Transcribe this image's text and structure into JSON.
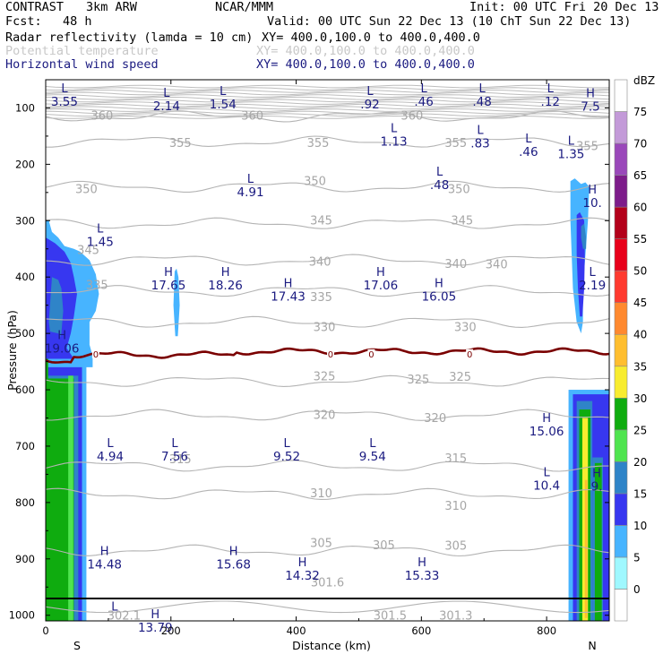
{
  "header": {
    "model": "CONTRAST",
    "config": "3km ARW",
    "org": "NCAR/MMM",
    "init": "Init: 00 UTC Fri 20 Dec 13",
    "fcst_label": "Fcst:",
    "fcst_value": "48 h",
    "valid": "Valid: 00 UTC Sun 22 Dec 13 (10 ChT Sun 22 Dec 13)",
    "fields": [
      {
        "name": "Radar reflectivity (lamda = 10 cm)",
        "xy": "XY= 400.0,100.0 to 400.0,400.0"
      },
      {
        "name": "Potential temperature",
        "xy": "XY= 400.0,100.0 to 400.0,400.0"
      },
      {
        "name": "Horizontal wind speed",
        "xy": "XY= 400.0,100.0 to 400.0,400.0"
      }
    ]
  },
  "chart_data": {
    "type": "cross-section contour",
    "xlabel": "Distance (km)",
    "ylabel": "Pressure (hPa)",
    "xlim": [
      0,
      900
    ],
    "ylim_hpa": [
      50,
      1010
    ],
    "x_ticks": [
      0,
      200,
      400,
      600,
      800
    ],
    "y_ticks": [
      100,
      200,
      300,
      400,
      500,
      600,
      700,
      800,
      900,
      1000
    ],
    "x_ends": {
      "left": "S",
      "right": "N"
    },
    "colorbar": {
      "unit": "dBZ",
      "levels": [
        0,
        5,
        10,
        15,
        20,
        25,
        30,
        35,
        40,
        45,
        50,
        55,
        60,
        65,
        70,
        75
      ],
      "colors": [
        "#ffffff",
        "#9ff8ff",
        "#47b4ff",
        "#3737f0",
        "#2f84c8",
        "#4fe44f",
        "#0fac0f",
        "#f8ec2f",
        "#ffbe2f",
        "#ff892f",
        "#ff3a2f",
        "#e8001a",
        "#b3001a",
        "#7d1c8a",
        "#9a48ba",
        "#c39ad8",
        "#ffffff"
      ]
    },
    "theta_contours": [
      {
        "value": 360,
        "p": 115
      },
      {
        "value": 355,
        "p": 160
      },
      {
        "value": 350,
        "p": 240
      },
      {
        "value": 345,
        "p": 305
      },
      {
        "value": 340,
        "p": 370
      },
      {
        "value": 335,
        "p": 425
      },
      {
        "value": 330,
        "p": 480
      },
      {
        "value": 325,
        "p": 585
      },
      {
        "value": 320,
        "p": 645
      },
      {
        "value": 315,
        "p": 735
      },
      {
        "value": 310,
        "p": 785
      },
      {
        "value": 305,
        "p": 885
      }
    ],
    "theta_labels": [
      {
        "text": "360",
        "x": 90,
        "p": 113
      },
      {
        "text": "360",
        "x": 330,
        "p": 113
      },
      {
        "text": "360",
        "x": 585,
        "p": 113
      },
      {
        "text": "355",
        "x": 215,
        "p": 161
      },
      {
        "text": "355",
        "x": 435,
        "p": 161
      },
      {
        "text": "355",
        "x": 655,
        "p": 161
      },
      {
        "text": "355",
        "x": 865,
        "p": 167
      },
      {
        "text": "350",
        "x": 65,
        "p": 243
      },
      {
        "text": "350",
        "x": 430,
        "p": 229
      },
      {
        "text": "350",
        "x": 660,
        "p": 243
      },
      {
        "text": "345",
        "x": 440,
        "p": 299
      },
      {
        "text": "345",
        "x": 665,
        "p": 299
      },
      {
        "text": "345",
        "x": 68,
        "p": 351
      },
      {
        "text": "340",
        "x": 438,
        "p": 372
      },
      {
        "text": "340",
        "x": 655,
        "p": 376
      },
      {
        "text": "340",
        "x": 720,
        "p": 377
      },
      {
        "text": "335",
        "x": 82,
        "p": 413
      },
      {
        "text": "335",
        "x": 440,
        "p": 435
      },
      {
        "text": "330",
        "x": 445,
        "p": 488
      },
      {
        "text": "330",
        "x": 670,
        "p": 488
      },
      {
        "text": "325",
        "x": 445,
        "p": 575
      },
      {
        "text": "325",
        "x": 595,
        "p": 581
      },
      {
        "text": "325",
        "x": 662,
        "p": 576
      },
      {
        "text": "320",
        "x": 445,
        "p": 644
      },
      {
        "text": "320",
        "x": 622,
        "p": 649
      },
      {
        "text": "315",
        "x": 215,
        "p": 722
      },
      {
        "text": "315",
        "x": 655,
        "p": 721
      },
      {
        "text": "310",
        "x": 440,
        "p": 783
      },
      {
        "text": "310",
        "x": 655,
        "p": 805
      },
      {
        "text": "305",
        "x": 440,
        "p": 871
      },
      {
        "text": "305",
        "x": 540,
        "p": 875
      },
      {
        "text": "305",
        "x": 655,
        "p": 876
      },
      {
        "text": "301.6",
        "x": 450,
        "p": 941
      },
      {
        "text": "302.1",
        "x": 125,
        "p": 1000
      },
      {
        "text": "301.5",
        "x": 550,
        "p": 1000
      },
      {
        "text": "301.3",
        "x": 655,
        "p": 1000
      }
    ],
    "wind_extrema": [
      {
        "type": "L",
        "value": "3.55",
        "x": 30,
        "p": 72
      },
      {
        "type": "L",
        "value": "2.14",
        "x": 193,
        "p": 80
      },
      {
        "type": "L",
        "value": "1.54",
        "x": 283,
        "p": 77
      },
      {
        "type": "L",
        "value": ".92",
        "x": 518,
        "p": 77
      },
      {
        "type": "L",
        "value": ".46",
        "x": 604,
        "p": 72
      },
      {
        "type": "L",
        "value": ".48",
        "x": 697,
        "p": 72
      },
      {
        "type": "L",
        "value": ".12",
        "x": 806,
        "p": 72
      },
      {
        "type": "H",
        "value": "7.5",
        "x": 870,
        "p": 81
      },
      {
        "type": "L",
        "value": "1.13",
        "x": 556,
        "p": 143
      },
      {
        "type": "L",
        "value": ".83",
        "x": 694,
        "p": 146
      },
      {
        "type": "L",
        "value": ".46",
        "x": 771,
        "p": 161
      },
      {
        "type": "L",
        "value": "1.35",
        "x": 839,
        "p": 165
      },
      {
        "type": "L",
        "value": ".48",
        "x": 629,
        "p": 220
      },
      {
        "type": "L",
        "value": "4.91",
        "x": 327,
        "p": 233
      },
      {
        "type": "H",
        "value": "10.",
        "x": 873,
        "p": 252
      },
      {
        "type": "L",
        "value": "1.45",
        "x": 87,
        "p": 321
      },
      {
        "type": "H",
        "value": "17.65",
        "x": 196,
        "p": 398
      },
      {
        "type": "H",
        "value": "18.26",
        "x": 287,
        "p": 398
      },
      {
        "type": "H",
        "value": "17.43",
        "x": 387,
        "p": 418
      },
      {
        "type": "H",
        "value": "17.06",
        "x": 535,
        "p": 398
      },
      {
        "type": "H",
        "value": "16.05",
        "x": 628,
        "p": 418
      },
      {
        "type": "L",
        "value": "2.19",
        "x": 873,
        "p": 398
      },
      {
        "type": "H",
        "value": "19.06",
        "x": 26,
        "p": 510
      },
      {
        "type": "H",
        "value": "15.06",
        "x": 800,
        "p": 657
      },
      {
        "type": "L",
        "value": "4.94",
        "x": 103,
        "p": 702
      },
      {
        "type": "L",
        "value": "7.56",
        "x": 206,
        "p": 702
      },
      {
        "type": "L",
        "value": "9.52",
        "x": 385,
        "p": 702
      },
      {
        "type": "L",
        "value": "9.54",
        "x": 522,
        "p": 702
      },
      {
        "type": "L",
        "value": "10.4",
        "x": 800,
        "p": 753
      },
      {
        "type": "H",
        "value": "9.",
        "x": 880,
        "p": 755
      },
      {
        "type": "H",
        "value": "14.48",
        "x": 94,
        "p": 893
      },
      {
        "type": "H",
        "value": "15.68",
        "x": 300,
        "p": 893
      },
      {
        "type": "H",
        "value": "14.32",
        "x": 410,
        "p": 913
      },
      {
        "type": "H",
        "value": "15.33",
        "x": 601,
        "p": 913
      },
      {
        "type": "L",
        "value": "",
        "x": 110,
        "p": 992
      },
      {
        "type": "H",
        "value": "13.79",
        "x": 175,
        "p": 1005
      }
    ],
    "freezing_level": {
      "p": 548,
      "labels": [
        {
          "text": "0",
          "x": 80
        },
        {
          "text": "0",
          "x": 455
        },
        {
          "text": "0",
          "x": 520
        },
        {
          "text": "0",
          "x": 677
        }
      ]
    },
    "reflectivity_regions": {
      "left_column": "0-95 km, surface to ~300 hPa, 25-35 dBZ core near 40 km",
      "small_cell": "~210 km, 390-510 hPa, 5-10 dBZ",
      "right_column": "840-900 km, surface to ~230 hPa, up to 35 dBZ near 865 km"
    }
  }
}
